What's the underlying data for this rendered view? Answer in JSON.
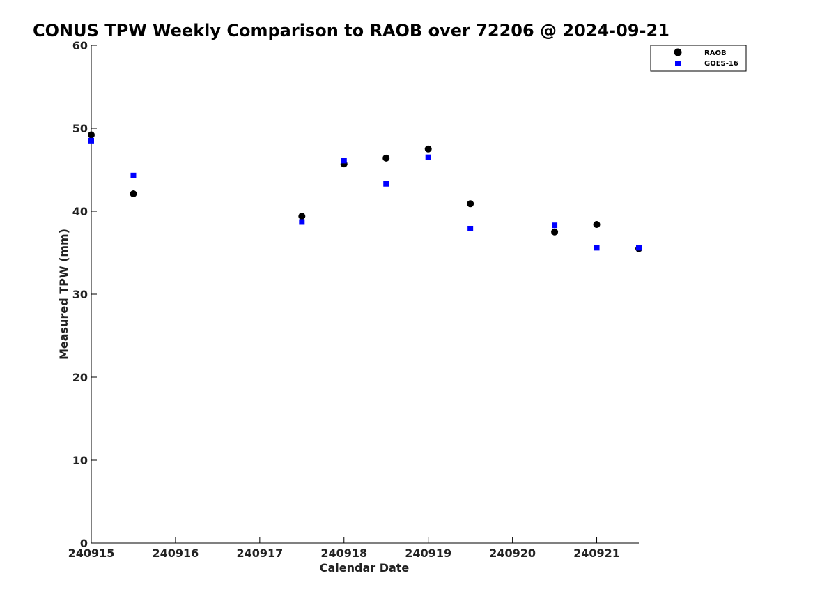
{
  "chart_data": {
    "type": "scatter",
    "title": "CONUS TPW Weekly Comparison to RAOB over 72206 @ 2024-09-21",
    "xlabel": "Calendar Date",
    "ylabel": "Measured TPW (mm)",
    "xlim": [
      240915,
      240921.5
    ],
    "ylim": [
      0,
      60
    ],
    "x_ticks": [
      240915,
      240916,
      240917,
      240918,
      240919,
      240920,
      240921
    ],
    "x_tick_labels": [
      "240915",
      "240916",
      "240917",
      "240918",
      "240919",
      "240920",
      "240921"
    ],
    "y_ticks": [
      0,
      10,
      20,
      30,
      40,
      50,
      60
    ],
    "y_tick_labels": [
      "0",
      "10",
      "20",
      "30",
      "40",
      "50",
      "60"
    ],
    "grid": false,
    "legend_position": "top-right",
    "series": [
      {
        "name": "RAOB",
        "marker": "circle",
        "color": "#000000",
        "points": [
          {
            "x": 240915.0,
            "y": 49.2
          },
          {
            "x": 240915.5,
            "y": 42.1
          },
          {
            "x": 240917.5,
            "y": 39.4
          },
          {
            "x": 240918.0,
            "y": 45.7
          },
          {
            "x": 240918.5,
            "y": 46.4
          },
          {
            "x": 240919.0,
            "y": 47.5
          },
          {
            "x": 240919.5,
            "y": 40.9
          },
          {
            "x": 240920.5,
            "y": 37.5
          },
          {
            "x": 240921.0,
            "y": 38.4
          },
          {
            "x": 240921.5,
            "y": 35.5
          }
        ]
      },
      {
        "name": "GOES-16",
        "marker": "square",
        "color": "#0000ff",
        "points": [
          {
            "x": 240915.0,
            "y": 48.5
          },
          {
            "x": 240915.5,
            "y": 44.3
          },
          {
            "x": 240917.5,
            "y": 38.7
          },
          {
            "x": 240918.0,
            "y": 46.1
          },
          {
            "x": 240918.5,
            "y": 43.3
          },
          {
            "x": 240919.0,
            "y": 46.5
          },
          {
            "x": 240919.5,
            "y": 37.9
          },
          {
            "x": 240920.5,
            "y": 38.3
          },
          {
            "x": 240921.0,
            "y": 35.6
          },
          {
            "x": 240921.5,
            "y": 35.6
          }
        ]
      }
    ]
  }
}
